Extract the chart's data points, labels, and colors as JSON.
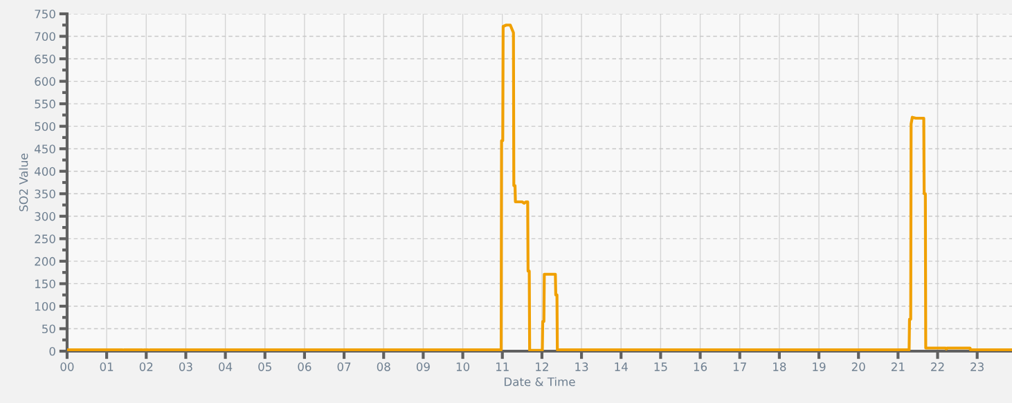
{
  "chart_data": {
    "type": "line",
    "xlabel": "Date & Time",
    "ylabel": "SO2 Value",
    "series": [
      {
        "color": "#f0a000",
        "x": [
          0,
          1.4,
          1.42,
          1.44,
          1.9,
          1.92,
          1.94,
          2.05,
          2.07,
          2.09,
          10.97,
          10.98,
          11.01,
          11.02,
          11.1,
          11.2,
          11.28,
          11.29,
          11.32,
          11.33,
          11.5,
          11.55,
          11.6,
          11.64,
          11.65,
          11.68,
          11.69,
          12.01,
          12.02,
          12.05,
          12.06,
          12.34,
          12.35,
          12.38,
          12.39,
          21.28,
          21.29,
          21.32,
          21.33,
          21.36,
          21.45,
          21.65,
          21.66,
          21.69,
          21.7,
          22.2,
          22.22,
          22.24,
          22.82,
          22.83,
          23.88
        ],
        "values": [
          3,
          3,
          0,
          3,
          3,
          0,
          3,
          3,
          0,
          3,
          3,
          468,
          468,
          722,
          725,
          725,
          708,
          368,
          368,
          332,
          332,
          329,
          332,
          332,
          178,
          178,
          2,
          2,
          66,
          66,
          171,
          171,
          125,
          125,
          3,
          3,
          71,
          71,
          505,
          520,
          518,
          518,
          350,
          350,
          7,
          7,
          5,
          7,
          7,
          3,
          3
        ]
      }
    ],
    "xlim": [
      0,
      23.88
    ],
    "ylim": [
      0,
      750
    ],
    "xticks": [
      {
        "value": 0,
        "label": "00"
      },
      {
        "value": 1,
        "label": "01"
      },
      {
        "value": 2,
        "label": "02"
      },
      {
        "value": 3,
        "label": "03"
      },
      {
        "value": 4,
        "label": "04"
      },
      {
        "value": 5,
        "label": "05"
      },
      {
        "value": 6,
        "label": "06"
      },
      {
        "value": 7,
        "label": "07"
      },
      {
        "value": 8,
        "label": "08"
      },
      {
        "value": 9,
        "label": "09"
      },
      {
        "value": 10,
        "label": "10"
      },
      {
        "value": 11,
        "label": "11"
      },
      {
        "value": 12,
        "label": "12"
      },
      {
        "value": 13,
        "label": "13"
      },
      {
        "value": 14,
        "label": "14"
      },
      {
        "value": 15,
        "label": "15"
      },
      {
        "value": 16,
        "label": "16"
      },
      {
        "value": 17,
        "label": "17"
      },
      {
        "value": 18,
        "label": "18"
      },
      {
        "value": 19,
        "label": "19"
      },
      {
        "value": 20,
        "label": "20"
      },
      {
        "value": 21,
        "label": "21"
      },
      {
        "value": 22,
        "label": "22"
      },
      {
        "value": 23,
        "label": "23"
      }
    ],
    "yticks": [
      0,
      50,
      100,
      150,
      200,
      250,
      300,
      350,
      400,
      450,
      500,
      550,
      600,
      650,
      700,
      750
    ],
    "grid": true,
    "marker": "none",
    "line_style": "solid"
  }
}
